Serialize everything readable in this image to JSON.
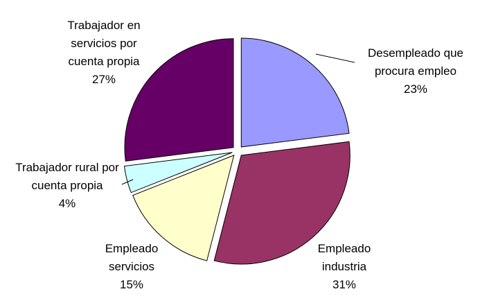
{
  "chart_data": {
    "type": "pie",
    "categories": [
      "Desempleado que procura empleo",
      "Empleado industria",
      "Empleado servicios",
      "Trabajador rural por cuenta propia",
      "Trabajador en servicios por cuenta propia"
    ],
    "values": [
      23,
      31,
      15,
      4,
      27
    ],
    "value_labels": [
      "23%",
      "31%",
      "15%",
      "4%",
      "27%"
    ],
    "colors": [
      "#9999ff",
      "#993366",
      "#ffffcc",
      "#ccffff",
      "#660066"
    ]
  }
}
